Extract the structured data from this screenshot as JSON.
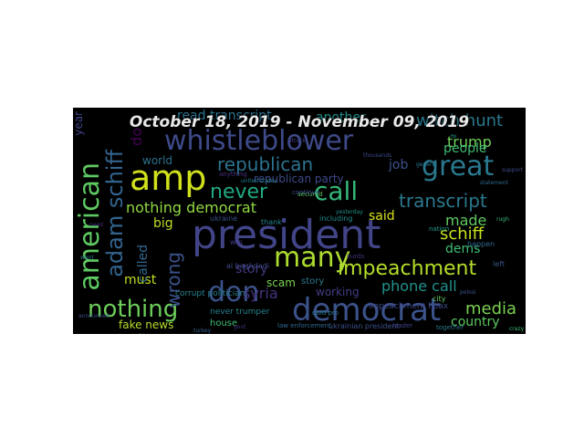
{
  "title": "October 18, 2019 - November 09, 2019",
  "words": [
    {
      "text": "president",
      "color": "#414487"
    },
    {
      "text": "whistleblower",
      "color": "#3e4a89"
    },
    {
      "text": "amp",
      "color": "#d0e11c"
    },
    {
      "text": "great",
      "color": "#2a788e"
    },
    {
      "text": "democrat",
      "color": "#3b528b"
    },
    {
      "text": "american",
      "color": "#5ec962"
    },
    {
      "text": "adam schiff",
      "color": "#33638d"
    },
    {
      "text": "impeachment",
      "color": "#b5de2b"
    },
    {
      "text": "many",
      "color": "#addc30"
    },
    {
      "text": "don",
      "color": "#3b528b"
    },
    {
      "text": "nothing",
      "color": "#6ccd5a"
    },
    {
      "text": "call",
      "color": "#35b779"
    },
    {
      "text": "never",
      "color": "#22a884"
    },
    {
      "text": "republican",
      "color": "#2c728e"
    },
    {
      "text": "transcript",
      "color": "#2a788e"
    },
    {
      "text": "nothing democrat",
      "color": "#90d743"
    },
    {
      "text": "media",
      "color": "#7ad151"
    },
    {
      "text": "schiff",
      "color": "#c8e020"
    },
    {
      "text": "witch hunt",
      "color": "#2a788e"
    },
    {
      "text": "trump",
      "color": "#6ece58"
    },
    {
      "text": "people",
      "color": "#3fbc73"
    },
    {
      "text": "made",
      "color": "#5ec962"
    },
    {
      "text": "dems",
      "color": "#3fbc73"
    },
    {
      "text": "phone call",
      "color": "#21918c"
    },
    {
      "text": "country",
      "color": "#5ec962"
    },
    {
      "text": "wrong",
      "color": "#3b528b"
    },
    {
      "text": "story",
      "color": "#443983"
    },
    {
      "text": "fake news",
      "color": "#b5de2b"
    },
    {
      "text": "syria",
      "color": "#46337e"
    },
    {
      "text": "scam",
      "color": "#7ad151"
    },
    {
      "text": "must",
      "color": "#c2df23"
    },
    {
      "text": "big",
      "color": "#bddf26"
    },
    {
      "text": "said",
      "color": "#d8e219"
    },
    {
      "text": "job",
      "color": "#3b528b"
    },
    {
      "text": "world",
      "color": "#2c728e"
    },
    {
      "text": "read transcript",
      "color": "#2c728e"
    },
    {
      "text": "another",
      "color": "#21918c"
    },
    {
      "text": "working",
      "color": "#433d84"
    },
    {
      "text": "called",
      "color": "#31688e"
    },
    {
      "text": "republican party",
      "color": "#3e4a89"
    },
    {
      "text": "year",
      "color": "#414487"
    },
    {
      "text": "do",
      "color": "#440154"
    },
    {
      "text": "house",
      "color": "#3dbc74"
    },
    {
      "text": "never trumper",
      "color": "#25838e"
    },
    {
      "text": "story",
      "color": "#2a788e"
    },
    {
      "text": "impeachment hoax",
      "color": "#3e4a89"
    },
    {
      "text": "corrupt politician",
      "color": "#26828e"
    },
    {
      "text": "al baghdadi",
      "color": "#3e4a89"
    },
    {
      "text": "thank",
      "color": "#26828e"
    },
    {
      "text": "ukraine",
      "color": "#3b528b"
    },
    {
      "text": "including",
      "color": "#228c8d"
    },
    {
      "text": "left",
      "color": "#3b528b"
    },
    {
      "text": "happen",
      "color": "#31688e"
    },
    {
      "text": "nation",
      "color": "#1f9e89"
    },
    {
      "text": "city",
      "color": "#5ec962"
    },
    {
      "text": "kurds",
      "color": "#46327e"
    },
    {
      "text": "anything",
      "color": "#46327e"
    },
    {
      "text": "ukrainian president",
      "color": "#3b528b"
    },
    {
      "text": "law enforcement",
      "color": "#31688e"
    },
    {
      "text": "quid pro",
      "color": "#2a788e"
    },
    {
      "text": "secured",
      "color": "#5ec962"
    },
    {
      "text": "together",
      "color": "#2a788e"
    },
    {
      "text": "leader",
      "color": "#414487"
    },
    {
      "text": "win",
      "color": "#443983"
    },
    {
      "text": "continue",
      "color": "#3b528b"
    },
    {
      "text": "united states",
      "color": "#26828e"
    },
    {
      "text": "yesterday",
      "color": "#21918c"
    },
    {
      "text": "rugh",
      "color": "#35b779"
    },
    {
      "text": "crazy",
      "color": "#3fbc73"
    },
    {
      "text": "pelosi",
      "color": "#3b528b"
    },
    {
      "text": "need",
      "color": "#46337e"
    },
    {
      "text": "announced",
      "color": "#3b528b"
    },
    {
      "text": "attack",
      "color": "#433e85"
    },
    {
      "text": "thousands",
      "color": "#3e4a89"
    },
    {
      "text": "general",
      "color": "#2a788e"
    },
    {
      "text": "turkey",
      "color": "#355f8d"
    },
    {
      "text": "govt",
      "color": "#46327e"
    },
    {
      "text": "want",
      "color": "#2a788e"
    },
    {
      "text": "statement",
      "color": "#31688e"
    },
    {
      "text": "support",
      "color": "#3e4a89"
    },
    {
      "text": "unfair",
      "color": "#35b779"
    },
    {
      "text": "fbi",
      "color": "#1f9e89"
    }
  ]
}
